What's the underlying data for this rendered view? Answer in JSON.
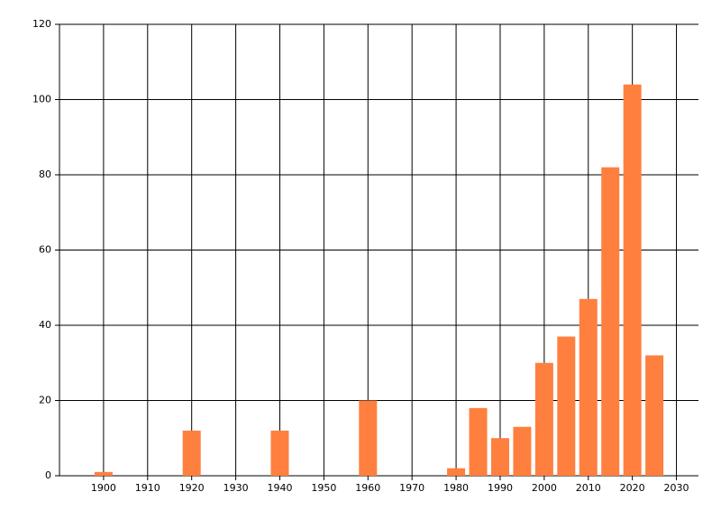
{
  "chart_data": {
    "type": "bar",
    "x": [
      1900,
      1920,
      1940,
      1960,
      1980,
      1985,
      1990,
      1995,
      2000,
      2005,
      2010,
      2015,
      2020,
      2025
    ],
    "values": [
      1,
      12,
      12,
      20,
      2,
      18,
      10,
      13,
      30,
      37,
      47,
      82,
      104,
      32
    ],
    "color": "#ff7f3f",
    "xlim": [
      1890,
      2035
    ],
    "xticks": [
      1900,
      1910,
      1920,
      1930,
      1940,
      1950,
      1960,
      1970,
      1980,
      1990,
      2000,
      2010,
      2020,
      2030
    ],
    "ylim": [
      0,
      120
    ],
    "yticks": [
      0,
      20,
      40,
      60,
      80,
      100,
      120
    ],
    "grid": true
  }
}
